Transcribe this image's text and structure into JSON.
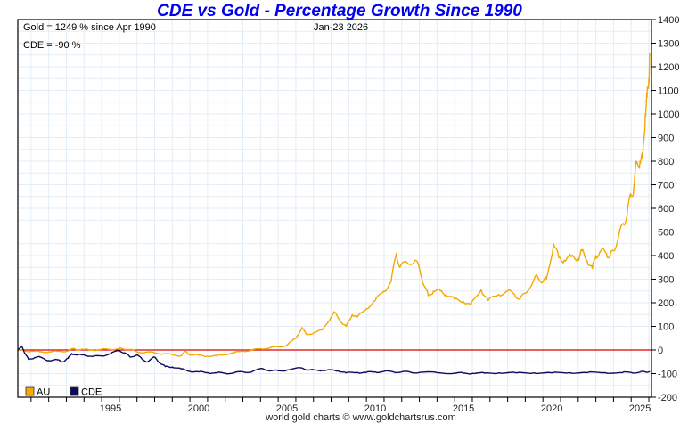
{
  "chart_data": {
    "type": "line",
    "title": "CDE vs Gold - Percentage Growth Since 1990",
    "xlabel": "",
    "ylabel": "",
    "xlim": [
      1990.25,
      2026.15
    ],
    "ylim": [
      -200,
      1400
    ],
    "grid": true,
    "x_ticks": [
      1995,
      2000,
      2005,
      2010,
      2015,
      2020,
      2025
    ],
    "x_tick_labels": [
      "1995",
      "2000",
      "2005",
      "2010",
      "2015",
      "2020",
      "2025"
    ],
    "y_ticks": [
      -200,
      -100,
      0,
      100,
      200,
      300,
      400,
      500,
      600,
      700,
      800,
      900,
      1000,
      1100,
      1200,
      1300,
      1400
    ],
    "y_tick_labels": [
      "-200",
      "-100",
      "0",
      "100",
      "200",
      "300",
      "400",
      "500",
      "600",
      "700",
      "800",
      "900",
      "1000",
      "1100",
      "1200",
      "1300",
      "1400"
    ],
    "y_axis_side": "right",
    "zero_line": {
      "value": 0,
      "color": "#dd0000"
    },
    "annotations": {
      "gold_summary": "Gold = 1249 % since Apr 1990",
      "cde_summary": "CDE = -90 %",
      "date": "Jan-23  2026"
    },
    "legend": {
      "placement": "bottom-left",
      "entries": [
        {
          "label": "AU",
          "color": "#f5a800"
        },
        {
          "label": "CDE",
          "color": "#0b0b5c"
        }
      ]
    },
    "footer": "world gold charts © www.goldchartsrus.com",
    "series": [
      {
        "name": "AU",
        "color": "#f5a800",
        "x": [
          1990.25,
          1990.6,
          1991.0,
          1991.5,
          1992.0,
          1992.5,
          1993.0,
          1993.4,
          1993.6,
          1994.0,
          1994.5,
          1995.0,
          1995.5,
          1996.0,
          1996.1,
          1996.6,
          1997.0,
          1997.5,
          1998.0,
          1998.5,
          1999.0,
          1999.5,
          1999.75,
          2000.0,
          2000.5,
          2001.0,
          2001.5,
          2002.0,
          2002.5,
          2003.0,
          2003.5,
          2004.0,
          2004.5,
          2005.0,
          2005.5,
          2006.0,
          2006.35,
          2006.6,
          2007.0,
          2007.5,
          2008.0,
          2008.2,
          2008.6,
          2008.85,
          2009.2,
          2009.5,
          2010.0,
          2010.5,
          2011.0,
          2011.4,
          2011.7,
          2011.9,
          2012.3,
          2012.75,
          2013.0,
          2013.3,
          2013.5,
          2013.8,
          2014.2,
          2014.5,
          2015.0,
          2015.5,
          2015.9,
          2016.5,
          2016.9,
          2017.5,
          2018.0,
          2018.4,
          2018.7,
          2019.0,
          2019.5,
          2019.7,
          2020.0,
          2020.2,
          2020.6,
          2020.9,
          2021.2,
          2021.6,
          2022.0,
          2022.2,
          2022.5,
          2022.8,
          2023.0,
          2023.3,
          2023.6,
          2023.8,
          2024.0,
          2024.3,
          2024.6,
          2024.8,
          2025.0,
          2025.15,
          2025.3,
          2025.5,
          2025.65,
          2025.8,
          2025.9,
          2026.0,
          2026.06
        ],
        "values": [
          0,
          -3,
          -5,
          -8,
          -8,
          -6,
          -5,
          5,
          2,
          2,
          0,
          2,
          3,
          6,
          8,
          2,
          -8,
          -10,
          -12,
          -16,
          -20,
          -24,
          -6,
          -20,
          -22,
          -26,
          -25,
          -18,
          -12,
          -4,
          -2,
          6,
          8,
          14,
          20,
          50,
          95,
          65,
          72,
          85,
          140,
          160,
          115,
          100,
          150,
          140,
          175,
          210,
          250,
          290,
          410,
          350,
          370,
          380,
          345,
          270,
          230,
          250,
          250,
          235,
          215,
          205,
          190,
          255,
          210,
          235,
          250,
          235,
          215,
          240,
          300,
          310,
          290,
          300,
          450,
          390,
          380,
          395,
          385,
          420,
          380,
          345,
          400,
          420,
          410,
          395,
          420,
          490,
          530,
          600,
          650,
          690,
          790,
          800,
          810,
          1000,
          1070,
          1150,
          1249
        ]
      },
      {
        "name": "CDE",
        "color": "#0b0b5c",
        "x": [
          1990.25,
          1990.5,
          1990.7,
          1990.85,
          1991.2,
          1991.5,
          1992.0,
          1992.5,
          1992.8,
          1993.1,
          1993.3,
          1993.6,
          1994.0,
          1994.5,
          1995.0,
          1995.5,
          1996.0,
          1996.3,
          1996.6,
          1997.0,
          1997.3,
          1997.6,
          1998.0,
          1998.3,
          1998.6,
          1999.0,
          1999.5,
          2000.0,
          2000.5,
          2001.0,
          2001.5,
          2002.0,
          2002.5,
          2003.0,
          2003.5,
          2004.1,
          2004.6,
          2005.0,
          2005.5,
          2006.3,
          2006.7,
          2007.0,
          2007.5,
          2008.0,
          2008.4,
          2008.85,
          2009.5,
          2010.0,
          2010.5,
          2011.0,
          2011.5,
          2012.0,
          2012.5,
          2013.0,
          2014.0,
          2015.0,
          2015.5,
          2016.0,
          2016.7,
          2017.5,
          2018.5,
          2019.5,
          2020.5,
          2021.5,
          2022.5,
          2023.5,
          2024.5,
          2025.0,
          2025.5,
          2025.8,
          2026.06
        ],
        "values": [
          0,
          12,
          -20,
          -40,
          -32,
          -30,
          -45,
          -42,
          -50,
          -35,
          -15,
          -22,
          -20,
          -28,
          -25,
          -15,
          -2,
          -12,
          -30,
          -20,
          -40,
          -50,
          -30,
          -55,
          -70,
          -72,
          -80,
          -90,
          -93,
          -96,
          -97,
          -98,
          -97,
          -92,
          -93,
          -78,
          -88,
          -88,
          -85,
          -76,
          -84,
          -85,
          -86,
          -85,
          -88,
          -97,
          -95,
          -95,
          -93,
          -91,
          -92,
          -93,
          -94,
          -95,
          -96,
          -98,
          -98,
          -99,
          -98,
          -97,
          -97,
          -97,
          -97,
          -96,
          -96,
          -96,
          -96,
          -95,
          -94,
          -93,
          -90
        ]
      }
    ]
  }
}
